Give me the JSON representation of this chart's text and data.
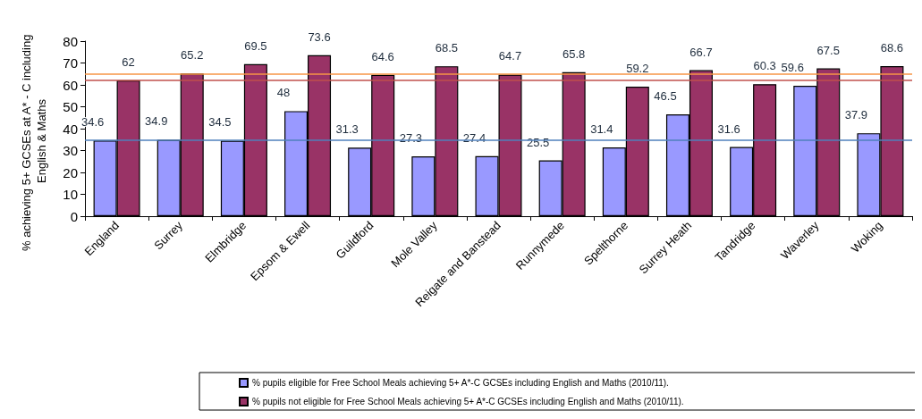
{
  "chart_data": {
    "type": "bar",
    "ylabel": "% achieving 5+ GCSEs at A* - C including English & Maths",
    "categories": [
      "England",
      "Surrey",
      "Elmbridge",
      "Epsom & Ewell",
      "Guildford",
      "Mole Valley",
      "Reigate and Banstead",
      "Runnymede",
      "Spelthorne",
      "Surrey Heath",
      "Tandridge",
      "Waverley",
      "Woking"
    ],
    "series": [
      {
        "name": "% pupils eligible for Free School Meals achieving 5+ A*-C GCSEs including English and Maths (2010/11).",
        "color": "#9999ff",
        "values": [
          34.6,
          34.9,
          34.5,
          48,
          31.3,
          27.3,
          27.4,
          25.5,
          31.4,
          46.5,
          31.6,
          59.6,
          37.9
        ]
      },
      {
        "name": "% pupils not eligible for Free School Meals achieving 5+ A*-C GCSEs including English and Maths (2010/11).",
        "color": "#993366",
        "values": [
          62,
          65.2,
          69.5,
          73.6,
          64.6,
          68.5,
          64.7,
          65.8,
          59.2,
          66.7,
          60.3,
          67.5,
          68.6
        ]
      }
    ],
    "ylim": [
      0,
      80
    ],
    "yticks": [
      0,
      10,
      20,
      30,
      40,
      50,
      60,
      70,
      80
    ],
    "data_labels": true,
    "grid": false,
    "legend": "bottom",
    "ref_lines": [
      {
        "axis": "y",
        "value": 34.6,
        "color": "#4f81bd"
      },
      {
        "axis": "y",
        "value": 62,
        "color": "#c0504d"
      },
      {
        "axis": "y",
        "value": 65.2,
        "color": "#f79646"
      }
    ]
  }
}
